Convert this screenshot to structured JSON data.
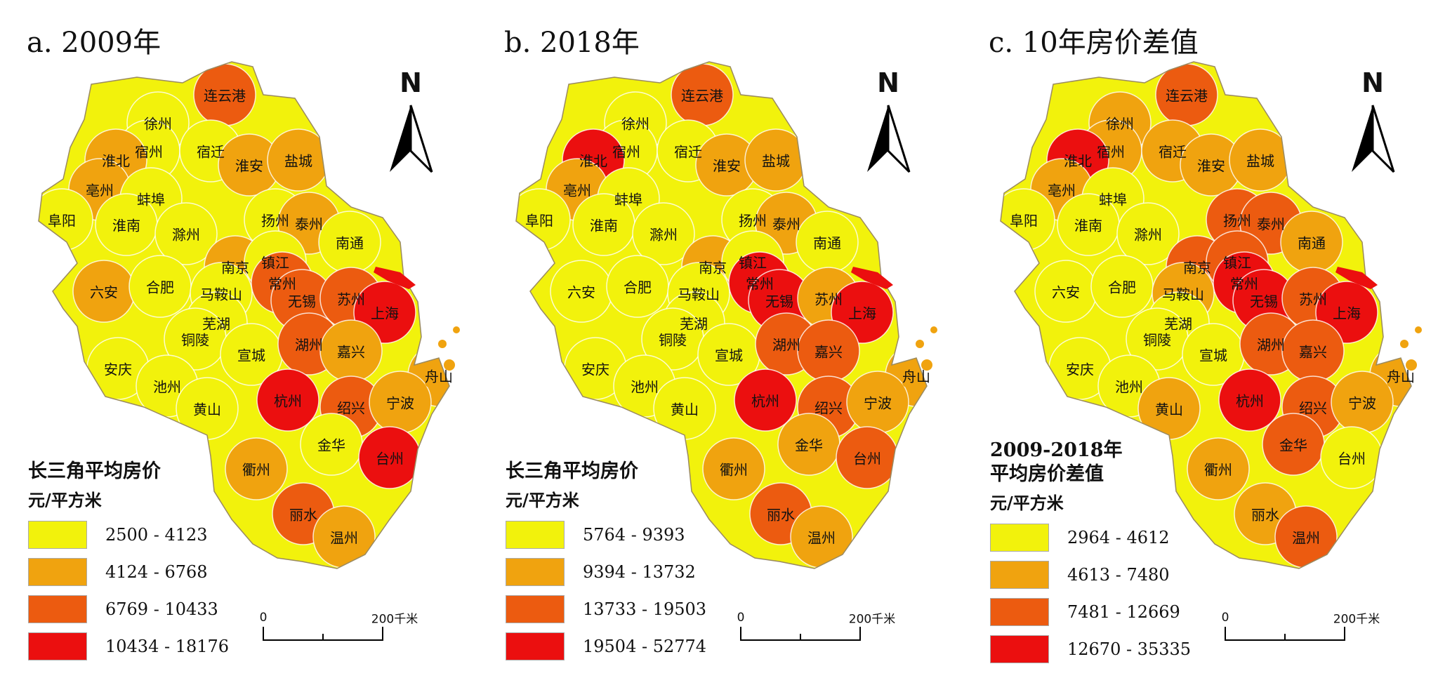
{
  "colors": {
    "class1": "#F2F20C",
    "class2": "#F0A30F",
    "class3": "#EC5B10",
    "class4": "#EB0F0F"
  },
  "north_label": "N",
  "scale": {
    "start": "0",
    "end": "200千米"
  },
  "panels": [
    {
      "title": "a. 2009年",
      "legend_title": "长三角平均房价",
      "legend_unit": "元/平方米",
      "legend_items": [
        "2500 - 4123",
        "4124 - 6768",
        "6769 - 10433",
        "10434 - 18176"
      ]
    },
    {
      "title": "b. 2018年",
      "legend_title": "长三角平均房价",
      "legend_unit": "元/平方米",
      "legend_items": [
        "5764 - 9393",
        "9394 - 13732",
        "13733 - 19503",
        "19504 - 52774"
      ]
    },
    {
      "title": "c. 10年房价差值",
      "legend_title": "2009-2018年\n平均房价差值",
      "legend_unit": "元/平方米",
      "legend_items": [
        "2964 - 4612",
        "4613 - 7480",
        "7481 - 12669",
        "12670 - 35335"
      ]
    }
  ],
  "cities": [
    "连云港",
    "徐州",
    "宿州",
    "宿迁",
    "淮北",
    "淮安",
    "盐城",
    "亳州",
    "蚌埠",
    "阜阳",
    "淮南",
    "滁州",
    "扬州",
    "泰州",
    "南通",
    "南京",
    "镇江",
    "常州",
    "六安",
    "合肥",
    "马鞍山",
    "无锡",
    "苏州",
    "上海",
    "芜湖",
    "铜陵",
    "宣城",
    "湖州",
    "嘉兴",
    "安庆",
    "池州",
    "舟山",
    "杭州",
    "绍兴",
    "宁波",
    "黄山",
    "金华",
    "台州",
    "衢州",
    "丽水",
    "温州"
  ],
  "city_classes": {
    "a": [
      3,
      1,
      1,
      1,
      2,
      2,
      2,
      2,
      1,
      1,
      1,
      1,
      1,
      2,
      1,
      2,
      1,
      3,
      2,
      1,
      1,
      3,
      3,
      4,
      1,
      1,
      1,
      3,
      2,
      1,
      1,
      2,
      4,
      3,
      2,
      1,
      1,
      4,
      2,
      3,
      2
    ],
    "b": [
      3,
      1,
      1,
      1,
      4,
      2,
      2,
      2,
      1,
      1,
      1,
      1,
      1,
      2,
      1,
      2,
      1,
      4,
      1,
      1,
      1,
      4,
      2,
      4,
      1,
      1,
      1,
      3,
      3,
      1,
      1,
      2,
      4,
      3,
      2,
      1,
      2,
      3,
      2,
      3,
      2
    ],
    "c": [
      3,
      2,
      2,
      2,
      4,
      2,
      2,
      2,
      1,
      1,
      1,
      1,
      3,
      3,
      2,
      3,
      3,
      4,
      1,
      1,
      2,
      4,
      3,
      4,
      1,
      1,
      1,
      3,
      3,
      1,
      1,
      2,
      4,
      3,
      2,
      2,
      3,
      1,
      2,
      2,
      3
    ]
  }
}
